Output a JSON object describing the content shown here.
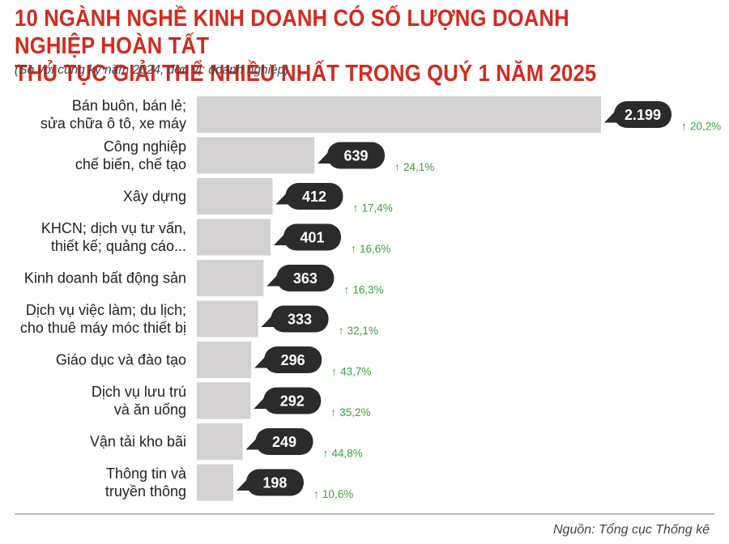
{
  "header": {
    "title_line1": "10 NGÀNH NGHỀ KINH DOANH CÓ SỐ LƯỢNG DOANH NGHIỆP HOÀN TẤT",
    "title_line2": "THỦ TỤC GIẢI THỂ NHIỀU NHẤT TRONG QUÝ 1 NĂM 2025",
    "subtitle": "(So với cùng kỳ năm 2024, đơn vị: doanh nghiệp)"
  },
  "footer": {
    "source": "Nguồn: Tổng cục Thống kê"
  },
  "colors": {
    "title": "#d42a1e",
    "bar": "#d3d1d2",
    "bubble": "#2b2b2b",
    "growth": "#3aa03a"
  },
  "chart_data": {
    "type": "bar",
    "orientation": "horizontal",
    "title": "10 NGÀNH NGHỀ KINH DOANH CÓ SỐ LƯỢNG DOANH NGHIỆP HOÀN TẤT THỦ TỤC GIẢI THỂ NHIỀU NHẤT TRONG QUÝ 1 NĂM 2025",
    "subtitle": "(So với cùng kỳ năm 2024, đơn vị: doanh nghiệp)",
    "categories": [
      [
        "Bán buôn, bán lẻ;",
        "sửa chữa ô tô, xe máy"
      ],
      [
        "Công nghiệp",
        "chế biến, chế tạo"
      ],
      [
        "Xây dựng"
      ],
      [
        "KHCN; dịch vụ tư vấn,",
        "thiết kế; quảng cáo..."
      ],
      [
        "Kinh doanh bất động sản"
      ],
      [
        "Dịch vụ việc làm; du lịch;",
        "cho thuê máy móc thiết bị"
      ],
      [
        "Giáo dục và đào tạo"
      ],
      [
        "Dịch vụ lưu trú",
        "và ăn uống"
      ],
      [
        "Vận tải kho bãi"
      ],
      [
        "Thông tin và",
        "truyền thông"
      ]
    ],
    "values": [
      2199,
      639,
      412,
      401,
      363,
      333,
      296,
      292,
      249,
      198
    ],
    "value_labels": [
      "2.199",
      "639",
      "412",
      "401",
      "363",
      "333",
      "296",
      "292",
      "249",
      "198"
    ],
    "growth": [
      "20,2%",
      "24,1%",
      "17,4%",
      "16,6%",
      "16,3%",
      "32,1%",
      "43,7%",
      "35,2%",
      "44,8%",
      "10,6%"
    ],
    "growth_arrow": "↑",
    "xlim": [
      0,
      2199
    ]
  }
}
